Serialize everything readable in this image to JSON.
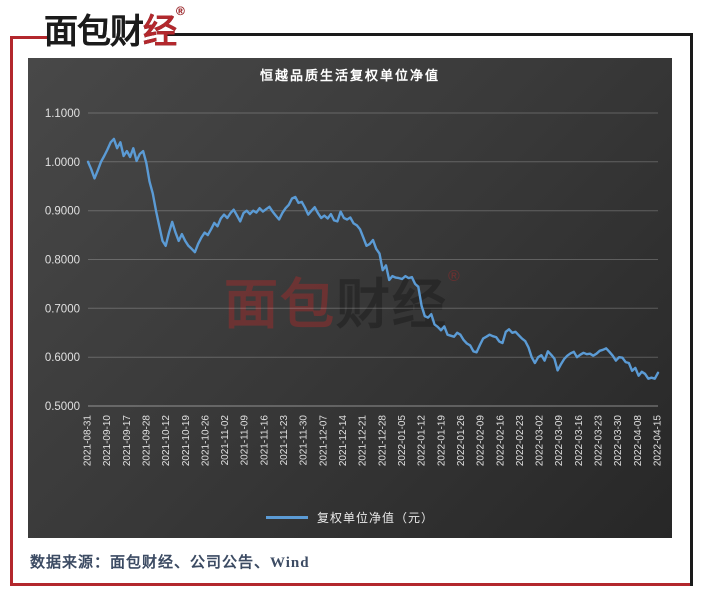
{
  "header": {
    "logo": {
      "black_part": "面包财",
      "red_part": "经",
      "reg_mark": "®"
    }
  },
  "chart": {
    "title": "恒越品质生活复权单位净值",
    "legend_label": "复权单位净值（元）"
  },
  "watermark": {
    "red_part": "面包",
    "dark_part": "财经",
    "reg_mark": "®"
  },
  "footer": {
    "text": "数据来源：面包财经、公司公告、Wind"
  },
  "colors": {
    "line": "#5B9BD5",
    "accent_red": "#B3282D",
    "frame_black": "#1A1A1A",
    "panel_top": "#484848",
    "panel_bottom": "#272727",
    "axis_text": "#E0E0E0",
    "footer_text": "#3C4B63"
  },
  "chart_data": {
    "type": "line",
    "title": "恒越品质生活复权单位净值",
    "xlabel": "",
    "ylabel": "",
    "ylim": [
      0.5,
      1.1
    ],
    "grid": "horizontal",
    "legend_position": "bottom",
    "y_tick_labels": [
      "1.1000",
      "1.0000",
      "0.9000",
      "0.8000",
      "0.7000",
      "0.6000",
      "0.5000"
    ],
    "x_tick_labels": [
      "2021-08-31",
      "2021-09-10",
      "2021-09-17",
      "2021-09-28",
      "2021-10-12",
      "2021-10-19",
      "2021-10-26",
      "2021-11-02",
      "2021-11-09",
      "2021-11-16",
      "2021-11-23",
      "2021-11-30",
      "2021-12-07",
      "2021-12-14",
      "2021-12-21",
      "2021-12-28",
      "2022-01-05",
      "2022-01-12",
      "2022-01-19",
      "2022-01-26",
      "2022-02-09",
      "2022-02-16",
      "2022-02-23",
      "2022-03-02",
      "2022-03-09",
      "2022-03-16",
      "2022-03-23",
      "2022-03-30",
      "2022-04-08",
      "2022-04-15"
    ],
    "series": [
      {
        "name": "复权单位净值（元）",
        "color": "#5B9BD5",
        "values": [
          1.0,
          0.985,
          0.966,
          0.982,
          1.0,
          1.012,
          1.025,
          1.04,
          1.047,
          1.028,
          1.04,
          1.012,
          1.022,
          1.01,
          1.028,
          1.002,
          1.016,
          1.022,
          0.998,
          0.96,
          0.935,
          0.9,
          0.868,
          0.838,
          0.828,
          0.855,
          0.877,
          0.856,
          0.838,
          0.852,
          0.838,
          0.828,
          0.822,
          0.815,
          0.832,
          0.845,
          0.855,
          0.85,
          0.862,
          0.875,
          0.868,
          0.884,
          0.892,
          0.885,
          0.895,
          0.902,
          0.89,
          0.878,
          0.895,
          0.9,
          0.893,
          0.9,
          0.896,
          0.905,
          0.898,
          0.903,
          0.908,
          0.898,
          0.89,
          0.882,
          0.895,
          0.905,
          0.912,
          0.925,
          0.928,
          0.916,
          0.918,
          0.906,
          0.892,
          0.9,
          0.907,
          0.895,
          0.885,
          0.89,
          0.884,
          0.893,
          0.88,
          0.878,
          0.898,
          0.885,
          0.882,
          0.886,
          0.874,
          0.87,
          0.862,
          0.845,
          0.828,
          0.832,
          0.84,
          0.822,
          0.812,
          0.778,
          0.788,
          0.758,
          0.766,
          0.763,
          0.762,
          0.76,
          0.766,
          0.762,
          0.764,
          0.75,
          0.744,
          0.705,
          0.684,
          0.681,
          0.688,
          0.667,
          0.662,
          0.655,
          0.663,
          0.646,
          0.644,
          0.642,
          0.65,
          0.646,
          0.635,
          0.628,
          0.624,
          0.612,
          0.61,
          0.625,
          0.638,
          0.642,
          0.646,
          0.643,
          0.641,
          0.632,
          0.629,
          0.652,
          0.657,
          0.65,
          0.652,
          0.645,
          0.638,
          0.633,
          0.62,
          0.6,
          0.588,
          0.6,
          0.604,
          0.593,
          0.612,
          0.605,
          0.597,
          0.573,
          0.585,
          0.596,
          0.603,
          0.608,
          0.611,
          0.6,
          0.605,
          0.609,
          0.606,
          0.607,
          0.603,
          0.607,
          0.613,
          0.615,
          0.618,
          0.611,
          0.603,
          0.593,
          0.6,
          0.599,
          0.59,
          0.588,
          0.572,
          0.578,
          0.562,
          0.57,
          0.566,
          0.556,
          0.558,
          0.556,
          0.568
        ]
      }
    ]
  }
}
